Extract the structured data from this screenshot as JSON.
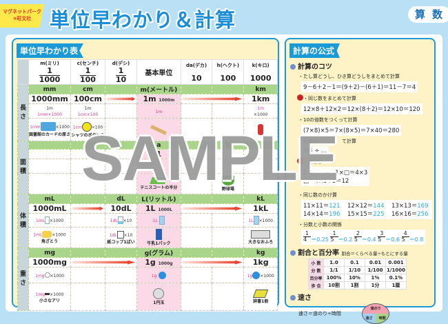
{
  "header": {
    "badge_line1": "マグネットパーク",
    "badge_line2": "×旺文社",
    "title": "単位早わかり＆計算",
    "subject": "算数"
  },
  "left": {
    "title": "単位早わかり表",
    "columns": [
      {
        "name": "m(ミリ)",
        "num": "1",
        "den": "1000"
      },
      {
        "name": "c(センチ)",
        "num": "1",
        "den": "100"
      },
      {
        "name": "d(デシ)",
        "num": "1",
        "den": "10"
      },
      {
        "name": "基本単位"
      },
      {
        "name": "da(デカ)",
        "value": "10"
      },
      {
        "name": "h(ヘクト)",
        "value": "100"
      },
      {
        "name": "k(キロ)",
        "value": "1000"
      }
    ],
    "length": {
      "label": "長さ",
      "u_m": "mm",
      "u_c": "cm",
      "u_base": "m(メートル)",
      "u_k": "km",
      "v_m": "1000mm",
      "v_c": "100cm",
      "v_base": "1m",
      "v_base_small": "1000m",
      "v_k": "1km",
      "r_m_top": "1m",
      "r_m": "1mm×1000",
      "r_c_top": "1m",
      "r_c": "1cm×100",
      "r_base": "1m",
      "r_k_top": "1m",
      "r_k": "×1000",
      "i_m_pink": "1mm",
      "i_m_x": "×1000",
      "i_m_cap": "図書館のカードの厚さ",
      "i_c_pink": "1cm",
      "i_c_x": "×100",
      "i_c_cap": "シャツのボタンの"
    },
    "area": {
      "label": "面積",
      "u_base": "a",
      "u_h": "h",
      "v_base": "1",
      "cap_base": "テニスコートの半分",
      "cap_h": "野球場"
    },
    "volume": {
      "label": "体積",
      "u_m": "mL",
      "u_d": "dL",
      "u_base": "L(リットル)",
      "u_k": "kL",
      "v_m": "1000mL",
      "v_d": "10dL",
      "v_base": "1L",
      "v_base_small": "1000L",
      "v_k": "1kL",
      "r_m_pink": "1mL",
      "r_m_x": "×1000",
      "r_d_pink": "1dL",
      "r_d_x": "×10",
      "r_base_pink": "1L",
      "r_k_pink": "1L",
      "r_k_x": "×1000",
      "i_m_pink": "1mL",
      "i_m_x": "×1000",
      "i_m_cap": "角ざとう",
      "i_d_pink": "1dL",
      "i_d_x": "×10",
      "i_d_cap": "紙コップ1ぱい",
      "i_base_cap": "牛乳1パック",
      "i_k_cap": "大きなおふろ"
    },
    "weight": {
      "label": "重さ",
      "u_m": "mg",
      "u_base": "g(グラム)",
      "u_k": "kg",
      "v_m": "1000mg",
      "v_base": "1g",
      "v_base_small": "1000g",
      "v_k": "1kg",
      "r_m_pink": "1mg",
      "r_m_x": "×1000",
      "r_base_pink": "1g",
      "r_k_pink": "1g",
      "r_k_x": "×1000",
      "i_m_pink": "1mg",
      "i_m_x": "×1000",
      "i_m_cap": "小さなアリ",
      "i_base_cap": "1円玉",
      "i_k_cap": "辞書1冊"
    }
  },
  "watermark": "SAMPLE",
  "right": {
    "title": "計算の公式",
    "tips": {
      "heading": "計算のコツ",
      "t1": "・たし算どうし、ひき算どうしをまとめて計算",
      "f1": "9－6＋2－1＝(9＋2)－(6＋1)＝11－7＝4",
      "t2": "・同じ数をまとめて計算",
      "f2": "12×8＋12×2＝12×(8＋2)＝12×10＝120",
      "t3": "・10の倍数をつくって計算",
      "f3": "(7×8)×5＝7×(8×5)＝7×40＝280",
      "t4": "・分数の　　　　　て計算",
      "f4": "7/8 ÷ ...",
      "t5": "・比はか",
      "f5a": "1:4　　→　1×□＝4×3",
      "f5b": "□＝4×3÷1＝12"
    },
    "squares": {
      "t1": "・同じ数のかけ算",
      "items": [
        {
          "e": "11×11＝",
          "r": "121"
        },
        {
          "e": "12×12＝",
          "r": "144"
        },
        {
          "e": "13×13＝",
          "r": "169"
        },
        {
          "e": "14×14＝",
          "r": "196"
        },
        {
          "e": "15×15＝",
          "r": "225"
        },
        {
          "e": "16×16＝",
          "r": "256"
        }
      ],
      "t2": "・分数と小数の関係",
      "fracs": [
        {
          "n": "1",
          "d": "4",
          "r": "＝0.25"
        },
        {
          "n": "1",
          "d": "5",
          "r": "＝0.2"
        },
        {
          "n": "2",
          "d": "5",
          "r": "＝0.4"
        },
        {
          "n": "3",
          "d": "5",
          "r": "＝0.6"
        },
        {
          "n": "4",
          "d": "5",
          "r": "＝0.8"
        }
      ]
    },
    "ratio": {
      "heading": "割合と百分率",
      "formula": "割合＝くらべる量÷もとにする量",
      "rows": [
        {
          "k": "小 数",
          "v": [
            "1.0",
            "0.1",
            "0.01",
            "0.001"
          ]
        },
        {
          "k": "分 数",
          "v": [
            "1/1",
            "1/10",
            "1/100",
            "1/1000"
          ]
        },
        {
          "k": "百分率",
          "v": [
            "100%",
            "10%",
            "1%",
            "0.1%"
          ]
        },
        {
          "k": "歩 合",
          "v": [
            "10割",
            "1割",
            "1分",
            "1厘"
          ]
        }
      ]
    },
    "speed": {
      "heading": "速さ",
      "formula": "速さ＝道のり÷時間",
      "top": "道のり",
      "bl": "速さ",
      "br": "時間"
    }
  },
  "colors": {
    "accent": "#1a9ad6",
    "card": "#fdf3c6",
    "unit_row": "#a8d58a",
    "base_col": "#fbd9e6",
    "bg": "#b9e0f4"
  }
}
